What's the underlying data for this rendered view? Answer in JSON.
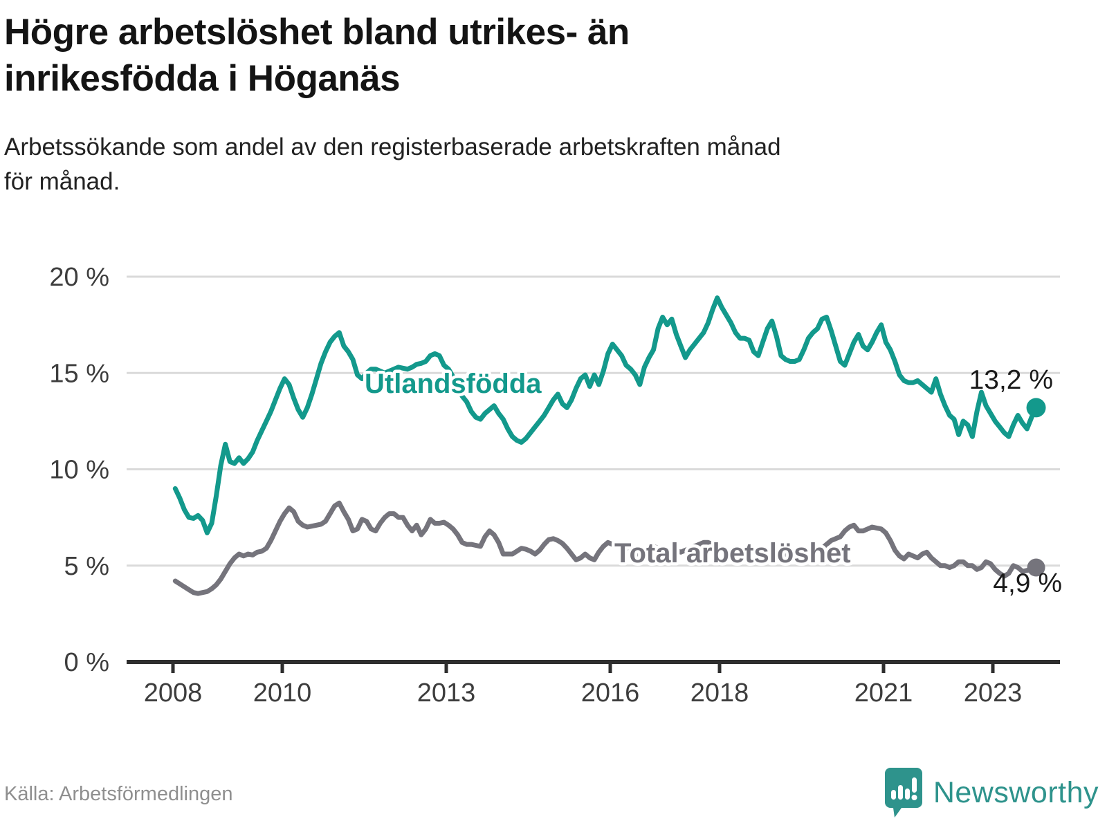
{
  "title_lines": [
    "Högre arbetslöshet bland utrikes- än",
    "inrikesfödda i Höganäs"
  ],
  "subtitle_lines": [
    "Arbetssökande som andel av den registerbaserade arbetskraften månad",
    "för månad."
  ],
  "source": "Källa: Arbetsförmedlingen",
  "brand": {
    "name": "Newsworthy",
    "color": "#2e938c"
  },
  "colors": {
    "background": "#ffffff",
    "gridline": "#dadada",
    "axis": "#2e2e2e",
    "tick_label": "#3d3d3d",
    "annotation": "#1a1a1a",
    "foreign_born": "#13998c",
    "total": "#75747c"
  },
  "chart_data": {
    "type": "line",
    "title": "Högre arbetslöshet bland utrikes- än inrikesfödda i Höganäs",
    "subtitle": "Arbetssökande som andel av den registerbaserade arbetskraften månad för månad.",
    "unit": "%",
    "frequency": "monthly",
    "start": "2008-01",
    "end": "2023-10",
    "ylim": [
      0,
      20
    ],
    "yticks": [
      0,
      5,
      10,
      15,
      20
    ],
    "ytick_suffix": " %",
    "xticks": [
      2008,
      2010,
      2013,
      2016,
      2018,
      2021,
      2023
    ],
    "grid": "horizontal",
    "legend_position": "inline-labels",
    "series": [
      {
        "name": "Utlandsfödda",
        "color": "#13998c",
        "end_label": "13,2 %",
        "end_value": 13.2,
        "values": [
          9.0,
          8.5,
          7.9,
          7.5,
          7.45,
          7.6,
          7.35,
          6.7,
          7.2,
          8.6,
          10.2,
          11.3,
          10.4,
          10.3,
          10.6,
          10.3,
          10.55,
          10.9,
          11.5,
          12.0,
          12.5,
          13.0,
          13.6,
          14.2,
          14.7,
          14.4,
          13.7,
          13.1,
          12.7,
          13.2,
          13.9,
          14.7,
          15.5,
          16.1,
          16.6,
          16.9,
          17.1,
          16.4,
          16.1,
          15.7,
          14.9,
          14.7,
          15.0,
          15.2,
          15.2,
          15.1,
          15.0,
          15.1,
          15.2,
          15.3,
          15.25,
          15.2,
          15.3,
          15.45,
          15.5,
          15.6,
          15.9,
          16.0,
          15.9,
          15.4,
          15.2,
          14.8,
          14.3,
          13.8,
          13.5,
          13.0,
          12.7,
          12.6,
          12.9,
          13.1,
          13.3,
          12.9,
          12.6,
          12.1,
          11.7,
          11.5,
          11.4,
          11.6,
          11.9,
          12.2,
          12.5,
          12.8,
          13.2,
          13.6,
          13.9,
          13.4,
          13.2,
          13.6,
          14.2,
          14.7,
          14.9,
          14.3,
          14.9,
          14.4,
          15.1,
          16.0,
          16.5,
          16.2,
          15.9,
          15.4,
          15.2,
          14.9,
          14.4,
          15.3,
          15.8,
          16.2,
          17.3,
          17.9,
          17.5,
          17.8,
          17.0,
          16.4,
          15.8,
          16.2,
          16.5,
          16.8,
          17.1,
          17.6,
          18.3,
          18.9,
          18.4,
          18.0,
          17.6,
          17.1,
          16.8,
          16.8,
          16.7,
          16.1,
          15.9,
          16.6,
          17.3,
          17.7,
          16.9,
          15.9,
          15.7,
          15.6,
          15.6,
          15.7,
          16.2,
          16.8,
          17.1,
          17.3,
          17.8,
          17.9,
          17.2,
          16.4,
          15.6,
          15.4,
          16.0,
          16.6,
          17.0,
          16.4,
          16.2,
          16.6,
          17.1,
          17.5,
          16.6,
          16.2,
          15.6,
          14.9,
          14.6,
          14.5,
          14.5,
          14.6,
          14.4,
          14.2,
          14.0,
          14.7,
          13.9,
          13.3,
          12.8,
          12.6,
          11.8,
          12.5,
          12.3,
          11.7,
          13.0,
          14.0,
          13.3,
          12.9,
          12.5,
          12.2,
          11.9,
          11.7,
          12.3,
          12.8,
          12.4,
          12.1,
          12.7,
          13.2
        ]
      },
      {
        "name": "Total arbetslöshet",
        "color": "#75747c",
        "end_label": "4,9 %",
        "end_value": 4.9,
        "values": [
          4.2,
          4.05,
          3.9,
          3.75,
          3.6,
          3.55,
          3.6,
          3.65,
          3.8,
          4.0,
          4.3,
          4.7,
          5.1,
          5.4,
          5.6,
          5.5,
          5.6,
          5.55,
          5.7,
          5.75,
          5.9,
          6.3,
          6.8,
          7.3,
          7.7,
          8.0,
          7.8,
          7.3,
          7.1,
          7.0,
          7.05,
          7.1,
          7.15,
          7.3,
          7.7,
          8.1,
          8.25,
          7.8,
          7.4,
          6.8,
          6.9,
          7.4,
          7.3,
          6.9,
          6.8,
          7.2,
          7.5,
          7.7,
          7.7,
          7.5,
          7.5,
          7.1,
          6.8,
          7.1,
          6.6,
          6.9,
          7.4,
          7.2,
          7.2,
          7.25,
          7.1,
          6.9,
          6.6,
          6.2,
          6.1,
          6.1,
          6.05,
          6.0,
          6.5,
          6.8,
          6.6,
          6.2,
          5.6,
          5.6,
          5.6,
          5.75,
          5.9,
          5.85,
          5.75,
          5.6,
          5.8,
          6.1,
          6.35,
          6.4,
          6.3,
          6.15,
          5.9,
          5.6,
          5.3,
          5.4,
          5.6,
          5.4,
          5.3,
          5.7,
          6.0,
          6.2,
          6.1,
          6.0,
          5.9,
          5.8,
          5.7,
          5.6,
          5.6,
          5.7,
          5.9,
          6.0,
          5.9,
          5.8,
          5.7,
          5.75,
          5.8,
          5.7,
          5.8,
          5.9,
          6.0,
          6.1,
          6.2,
          6.2,
          6.1,
          6.0,
          5.9,
          5.8,
          5.75,
          5.7,
          5.65,
          5.7,
          5.75,
          5.8,
          5.85,
          5.9,
          5.85,
          5.8,
          5.7,
          5.6,
          5.5,
          5.45,
          5.4,
          5.45,
          5.5,
          5.55,
          5.6,
          5.7,
          5.9,
          6.1,
          6.3,
          6.4,
          6.5,
          6.8,
          7.0,
          7.1,
          6.8,
          6.8,
          6.9,
          7.0,
          6.95,
          6.9,
          6.7,
          6.3,
          5.8,
          5.5,
          5.35,
          5.6,
          5.5,
          5.4,
          5.6,
          5.7,
          5.4,
          5.2,
          5.0,
          5.0,
          4.9,
          5.0,
          5.2,
          5.2,
          5.0,
          5.0,
          4.8,
          4.9,
          5.2,
          5.1,
          4.8,
          4.6,
          4.45,
          4.6,
          5.0,
          4.9,
          4.7,
          4.75,
          4.8,
          4.9
        ]
      }
    ]
  }
}
